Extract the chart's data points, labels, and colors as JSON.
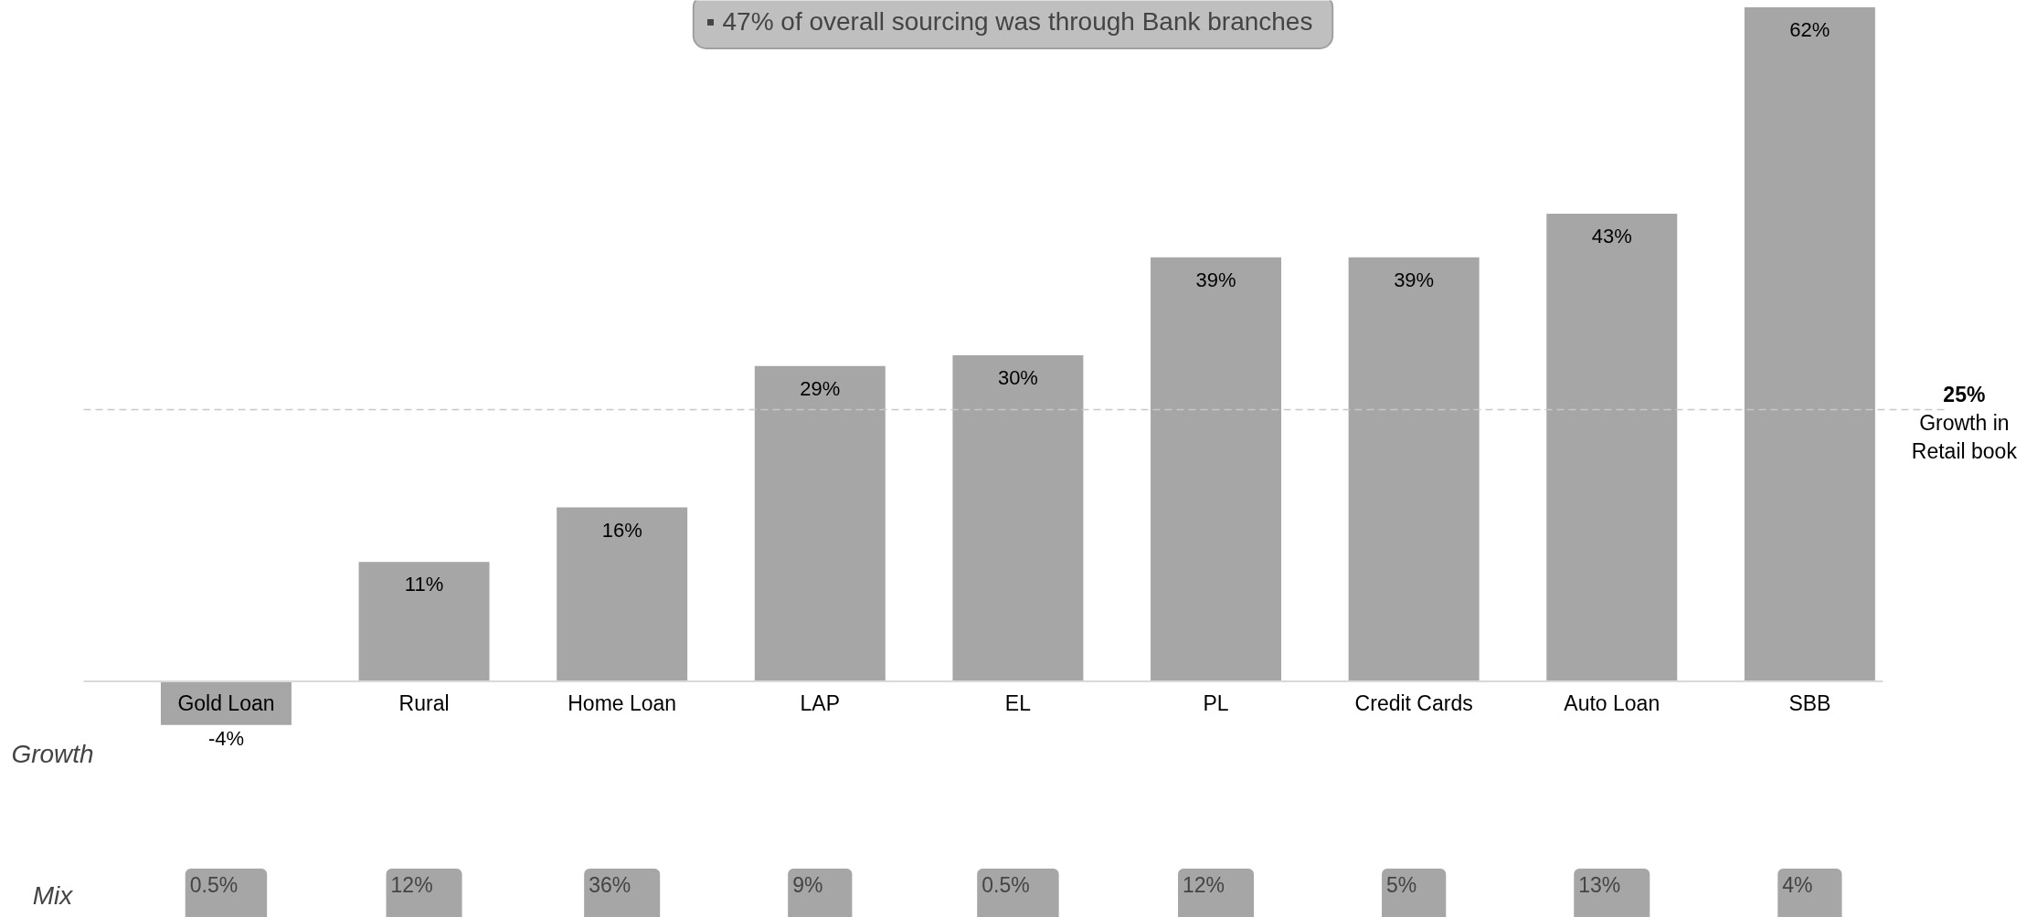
{
  "chart_data": {
    "type": "bar",
    "categories": [
      "Gold Loan",
      "Rural",
      "Home Loan",
      "LAP",
      "EL",
      "PL",
      "Credit Cards",
      "Auto Loan",
      "SBB"
    ],
    "values": [
      -4,
      11,
      16,
      29,
      30,
      39,
      39,
      43,
      62
    ],
    "value_labels": [
      "-4%",
      "11%",
      "16%",
      "29%",
      "30%",
      "39%",
      "39%",
      "43%",
      "62%"
    ],
    "color": "#a6a6a6",
    "ref_lines": [
      {
        "axis": "y",
        "value": 25,
        "label": "25%\nGrowth in\nRetail book",
        "color": "#c8c8c8",
        "line_style": "dashed"
      }
    ],
    "annotations": [
      "▪  47% of overall sourcing was through Bank branches",
      "Growth",
      "Mix",
      "0.5%",
      "12%",
      "36%",
      "9%",
      "0.5%",
      "12%",
      "5%",
      "13%",
      "4%"
    ]
  }
}
